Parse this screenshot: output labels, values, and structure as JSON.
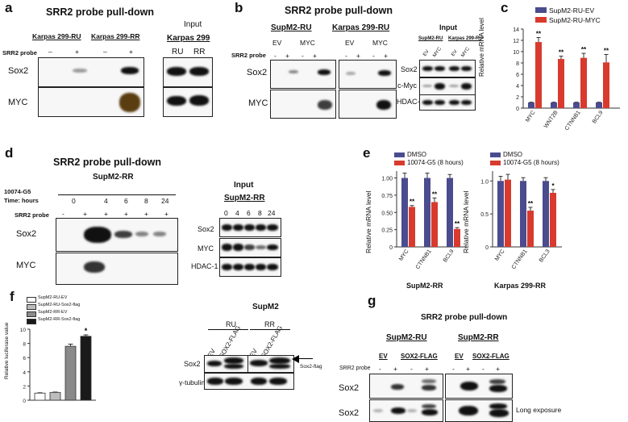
{
  "panels": {
    "a": {
      "letter": "a",
      "title": "SRR2 probe pull-down",
      "groups": [
        "Karpas 299-RU",
        "Karpas 299-RR"
      ],
      "probe_label": "SRR2 probe",
      "lanes": [
        "–",
        "+",
        "–",
        "+"
      ],
      "rows": [
        "Sox2",
        "MYC"
      ],
      "input_title": "Input",
      "input_cell": "Karpas 299",
      "input_lanes": [
        "RU",
        "RR"
      ]
    },
    "b": {
      "letter": "b",
      "title": "SRR2 probe pull-down",
      "groups": [
        "SupM2-RU",
        "Karpas 299-RU"
      ],
      "sub": [
        "EV",
        "MYC",
        "EV",
        "MYC"
      ],
      "probe_label": "SRR2 probe",
      "lanes": [
        "-",
        "+",
        "-",
        "+",
        "-",
        "+",
        "-",
        "+"
      ],
      "rows": [
        "Sox2",
        "MYC"
      ],
      "input_title": "Input",
      "input_groups": [
        "SupM2-RU",
        "Karpas 299-RU"
      ],
      "input_sub": [
        "EV",
        "MYC",
        "EV",
        "MYC"
      ],
      "input_rows": [
        "Sox2",
        "c-Myc",
        "HDAC-1"
      ]
    },
    "c": {
      "letter": "c",
      "legend": [
        "SupM2-RU-EV",
        "SupM2-RU-MYC"
      ],
      "ylabel": "Relative mRNA level",
      "yticks": [
        "0",
        "2",
        "4",
        "6",
        "8",
        "10",
        "12",
        "14"
      ]
    },
    "d": {
      "letter": "d",
      "title": "SRR2 probe pull-down",
      "cell": "SupM2-RR",
      "drug": "10074-G5",
      "time_label": "Time: hours",
      "times": [
        "0",
        "4",
        "6",
        "8",
        "24"
      ],
      "probe_label": "SRR2 probe",
      "lanes": [
        "-",
        "+",
        "+",
        "+",
        "+",
        "+"
      ],
      "rows": [
        "Sox2",
        "MYC"
      ],
      "input_title": "Input",
      "input_cell": "SupM2-RR",
      "input_times": [
        "0",
        "4",
        "6",
        "8",
        "24"
      ],
      "input_rows": [
        "Sox2",
        "MYC",
        "HDAC-1"
      ]
    },
    "e": {
      "letter": "e",
      "legend": [
        "DMSO",
        "10074-G5 (8 hours)"
      ],
      "ylabel": "Relative mRNA level",
      "left_yticks": [
        "0",
        "0.25",
        "0.50",
        "0.75",
        "1.00"
      ],
      "right_yticks": [
        "0",
        "0.5",
        "1.0"
      ],
      "left_xlabel": "SupM2-RR",
      "right_xlabel": "Karpas 299-RR"
    },
    "f": {
      "letter": "f",
      "legend": [
        "SupM2-RU-EV",
        "SupM2-RU-Sox2-flag",
        "SupM2-RR-EV",
        "SupM2-RR-Sox2-flag"
      ],
      "ylabel": "Relative luciferase value",
      "yticks": [
        "0",
        "2",
        "4",
        "6",
        "8",
        "10"
      ],
      "blot_title": "SupM2",
      "blot_groups": [
        "RU",
        "RR"
      ],
      "blot_sub": [
        "EV",
        "SOX2-FLAG",
        "EV",
        "SOX2-FLAG"
      ],
      "blot_rows": [
        "Sox2",
        "γ-tubulin"
      ],
      "arrow_label": "Sox2-flag"
    },
    "g": {
      "letter": "g",
      "title": "SRR2 probe pull-down",
      "groups": [
        "SupM2-RU",
        "SupM2-RR"
      ],
      "sub": [
        "EV",
        "SOX2-FLAG",
        "EV",
        "SOX2-FLAG"
      ],
      "probe_label": "SRR2 probe",
      "lanes": [
        "-",
        "+",
        "-",
        "+",
        "-",
        "+",
        "-",
        "+"
      ],
      "rows": [
        "Sox2",
        "Sox2"
      ],
      "note": "Long exposure"
    }
  },
  "colors": {
    "blue": "#4b4b8f",
    "red": "#d83a2e",
    "white": "#ffffff",
    "lightgray": "#bdbdbd",
    "darkgray": "#8a8a8a",
    "black": "#1a1a1a"
  },
  "chart_data": [
    {
      "panel": "c",
      "type": "bar",
      "categories": [
        "MYC",
        "WNT2B",
        "CTNNB1",
        "BCL9"
      ],
      "series": [
        {
          "name": "SupM2-RU-EV",
          "values": [
            1,
            1,
            1,
            1
          ],
          "color": "#4b4b8f"
        },
        {
          "name": "SupM2-RU-MYC",
          "values": [
            11.7,
            8.7,
            8.9,
            8.1
          ],
          "color": "#d83a2e"
        }
      ],
      "errors": [
        [
          0.05,
          0.05,
          0.05,
          0.05
        ],
        [
          0.8,
          0.5,
          0.8,
          1.4
        ]
      ],
      "significance": [
        "**",
        "**",
        "**",
        "**"
      ],
      "ylabel": "Relative mRNA level",
      "ylim": [
        0,
        14
      ]
    },
    {
      "panel": "e-left",
      "type": "bar",
      "categories": [
        "MYC",
        "CTNNB1",
        "BCL9"
      ],
      "series": [
        {
          "name": "DMSO",
          "values": [
            1.0,
            1.0,
            1.0
          ],
          "color": "#4b4b8f"
        },
        {
          "name": "10074-G5 (8 hours)",
          "values": [
            0.58,
            0.65,
            0.26
          ],
          "color": "#d83a2e"
        }
      ],
      "errors": [
        [
          0.07,
          0.07,
          0.05
        ],
        [
          0.02,
          0.06,
          0.02
        ]
      ],
      "significance": [
        "**",
        "**",
        "**"
      ],
      "ylabel": "Relative mRNA level",
      "xlabel": "SupM2-RR",
      "ylim": [
        0,
        1.1
      ]
    },
    {
      "panel": "e-right",
      "type": "bar",
      "categories": [
        "MYC",
        "CTNNB1",
        "BCL3"
      ],
      "series": [
        {
          "name": "DMSO",
          "values": [
            1.0,
            1.0,
            1.0
          ],
          "color": "#4b4b8f"
        },
        {
          "name": "10074-G5 (8 hours)",
          "values": [
            1.02,
            0.55,
            0.82
          ],
          "color": "#d83a2e"
        }
      ],
      "errors": [
        [
          0.07,
          0.05,
          0.05
        ],
        [
          0.08,
          0.05,
          0.05
        ]
      ],
      "significance": [
        "",
        "**",
        "*"
      ],
      "ylabel": "Relative mRNA level",
      "xlabel": "Karpas 299-RR",
      "ylim": [
        0,
        1.15
      ]
    },
    {
      "panel": "f",
      "type": "bar",
      "categories": [
        "SupM2-RU-EV",
        "SupM2-RU-Sox2-flag",
        "SupM2-RR-EV",
        "SupM2-RR-Sox2-flag"
      ],
      "series": [
        {
          "name": "Relative luciferase value",
          "values": [
            1.0,
            1.1,
            7.6,
            9.0
          ]
        }
      ],
      "colors": [
        "#ffffff",
        "#bdbdbd",
        "#8a8a8a",
        "#1a1a1a"
      ],
      "errors": [
        0.05,
        0.05,
        0.3,
        0.2
      ],
      "significance": [
        "",
        "",
        "",
        "*"
      ],
      "ylabel": "Relative luciferase value",
      "ylim": [
        0,
        10
      ]
    }
  ]
}
